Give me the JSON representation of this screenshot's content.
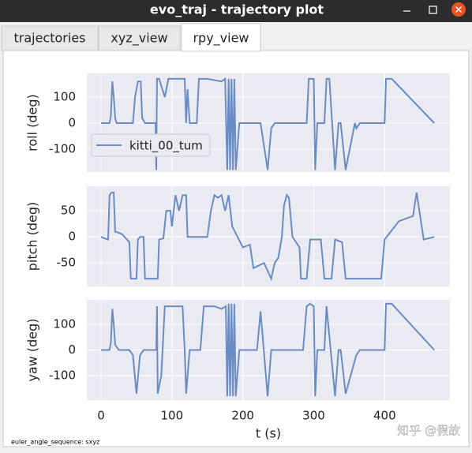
{
  "window": {
    "title": "evo_traj - trajectory plot",
    "tabs": [
      "trajectories",
      "xyz_view",
      "rpy_view"
    ],
    "active_tab": 2
  },
  "chart_data": [
    {
      "type": "line",
      "ylabel": "roll (deg)",
      "legend": "lower left",
      "grid": true,
      "xlim": [
        -20,
        492
      ],
      "ylim": [
        -188,
        191
      ],
      "yticks": [
        -100,
        0,
        100
      ],
      "xticks": [
        0,
        100,
        200,
        300,
        400
      ],
      "series": [
        {
          "name": "kitti_00_tum",
          "color": "#6b8cc2",
          "x": [
            0,
            10,
            12,
            14,
            16,
            18,
            20,
            22,
            25,
            45,
            48,
            52,
            56,
            58,
            62,
            77,
            78,
            79,
            82,
            90,
            95,
            110,
            118,
            120,
            122,
            125,
            135,
            138,
            150,
            170,
            175,
            178,
            180,
            182,
            184,
            186,
            188,
            190,
            195,
            225,
            235,
            240,
            245,
            260,
            290,
            293,
            296,
            300,
            302,
            305,
            315,
            318,
            322,
            330,
            335,
            338,
            345,
            358,
            360,
            365,
            380,
            400,
            402,
            405,
            410,
            470
          ],
          "values": [
            0,
            0,
            0,
            30,
            160,
            100,
            20,
            0,
            0,
            0,
            100,
            160,
            160,
            20,
            0,
            0,
            -180,
            170,
            170,
            100,
            170,
            170,
            170,
            0,
            130,
            0,
            0,
            170,
            170,
            160,
            170,
            -180,
            170,
            -180,
            170,
            -180,
            170,
            -180,
            0,
            0,
            -180,
            -20,
            0,
            0,
            0,
            170,
            170,
            170,
            -180,
            0,
            0,
            170,
            170,
            -180,
            0,
            0,
            -180,
            0,
            -20,
            0,
            0,
            0,
            170,
            170,
            170,
            0
          ]
        }
      ]
    },
    {
      "type": "line",
      "ylabel": "pitch (deg)",
      "grid": true,
      "xlim": [
        -20,
        492
      ],
      "ylim": [
        -95,
        97
      ],
      "yticks": [
        -50,
        0,
        50
      ],
      "xticks": [
        0,
        100,
        200,
        300,
        400
      ],
      "series": [
        {
          "color": "#6b8cc2",
          "x": [
            0,
            5,
            10,
            12,
            15,
            18,
            20,
            25,
            30,
            40,
            42,
            50,
            52,
            55,
            60,
            62,
            80,
            82,
            88,
            92,
            98,
            100,
            105,
            110,
            115,
            120,
            122,
            150,
            155,
            160,
            165,
            170,
            175,
            180,
            185,
            200,
            210,
            215,
            230,
            240,
            245,
            250,
            255,
            258,
            262,
            265,
            270,
            280,
            282,
            290,
            295,
            310,
            315,
            325,
            330,
            340,
            345,
            395,
            400,
            420,
            440,
            445,
            450,
            455,
            470
          ],
          "values": [
            0,
            -3,
            -5,
            80,
            85,
            85,
            10,
            8,
            5,
            -10,
            -80,
            -80,
            -5,
            0,
            0,
            -80,
            -80,
            -5,
            -3,
            50,
            50,
            20,
            80,
            50,
            80,
            80,
            0,
            0,
            50,
            80,
            75,
            80,
            50,
            80,
            20,
            -20,
            -15,
            -60,
            -50,
            -80,
            -50,
            -40,
            0,
            60,
            80,
            75,
            0,
            -20,
            -80,
            -80,
            -5,
            -5,
            -80,
            -80,
            -5,
            -10,
            -80,
            -80,
            -5,
            30,
            40,
            85,
            40,
            -5,
            0
          ]
        }
      ]
    },
    {
      "type": "line",
      "ylabel": "yaw (deg)",
      "xlabel": "t (s)",
      "grid": true,
      "xlim": [
        -20,
        492
      ],
      "ylim": [
        -195,
        195
      ],
      "yticks": [
        -100,
        0,
        100
      ],
      "xticks": [
        0,
        100,
        200,
        300,
        400
      ],
      "series": [
        {
          "color": "#6b8cc2",
          "x": [
            0,
            10,
            12,
            14,
            16,
            18,
            20,
            25,
            40,
            45,
            50,
            55,
            60,
            65,
            78,
            79,
            80,
            85,
            90,
            100,
            115,
            118,
            120,
            125,
            140,
            145,
            160,
            170,
            176,
            178,
            180,
            182,
            184,
            186,
            188,
            190,
            195,
            220,
            225,
            235,
            240,
            250,
            270,
            285,
            290,
            295,
            300,
            302,
            305,
            315,
            318,
            330,
            335,
            338,
            345,
            360,
            365,
            380,
            400,
            402,
            410,
            470
          ],
          "values": [
            0,
            0,
            0,
            30,
            160,
            100,
            20,
            0,
            0,
            -20,
            -170,
            -20,
            0,
            0,
            0,
            170,
            -170,
            -100,
            170,
            170,
            170,
            0,
            -170,
            0,
            0,
            170,
            170,
            160,
            170,
            -180,
            180,
            -180,
            180,
            -180,
            180,
            -180,
            0,
            0,
            150,
            -180,
            0,
            0,
            0,
            0,
            170,
            180,
            170,
            -180,
            0,
            0,
            170,
            -180,
            0,
            0,
            -170,
            -20,
            0,
            0,
            0,
            180,
            180,
            0
          ]
        }
      ]
    }
  ],
  "footer": "euler_angle_sequence: sxyz",
  "watermark": "知乎 @假故"
}
